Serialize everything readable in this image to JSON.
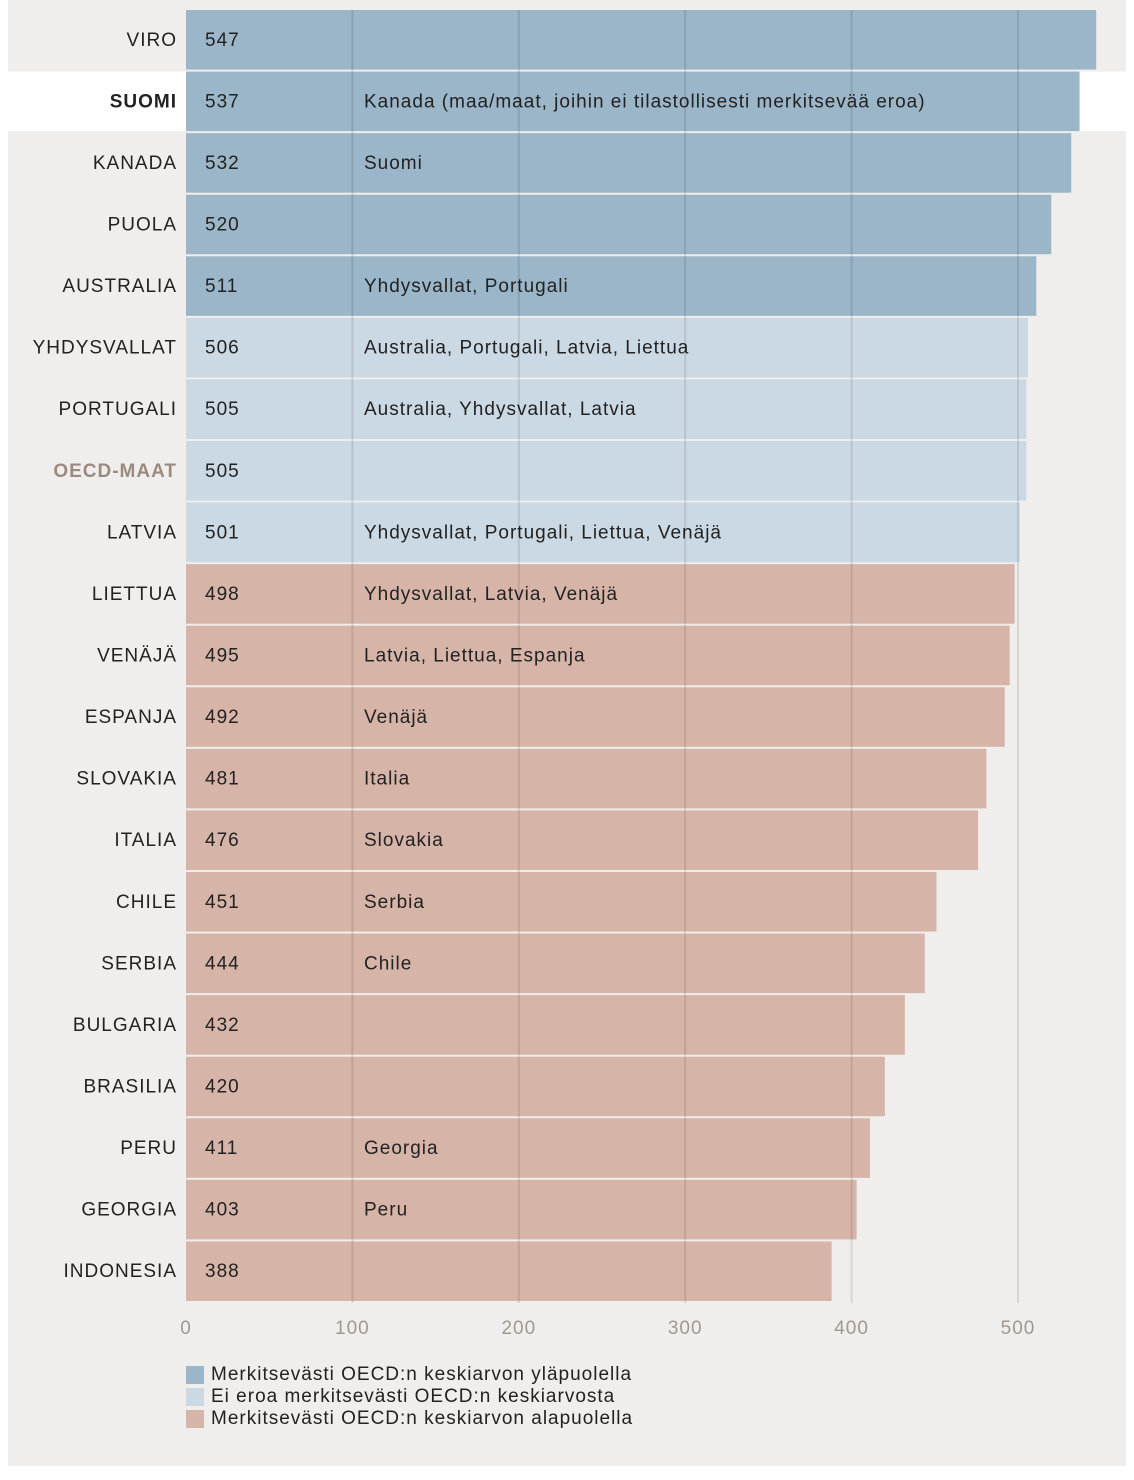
{
  "chart_data": {
    "type": "barh",
    "categories": [
      "VIRO",
      "SUOMI",
      "KANADA",
      "PUOLA",
      "AUSTRALIA",
      "YHDYSVALLAT",
      "PORTUGALI",
      "OECD-MAAT",
      "LATVIA",
      "LIETTUA",
      "VENÄJÄ",
      "ESPANJA",
      "SLOVAKIA",
      "ITALIA",
      "CHILE",
      "SERBIA",
      "BULGARIA",
      "BRASILIA",
      "PERU",
      "GEORGIA",
      "INDONESIA"
    ],
    "series": [
      {
        "name": "Merkitsevästi OECD:n keskiarvon yläpuolella",
        "color": "#9ab6c8",
        "values": [
          547,
          537,
          532,
          520,
          511,
          null,
          null,
          null,
          null,
          null,
          null,
          null,
          null,
          null,
          null,
          null,
          null,
          null,
          null,
          null,
          null
        ]
      },
      {
        "name": "Ei eroa merkitsevästi OECD:n keskiarvosta",
        "color": "#cbd9e4",
        "values": [
          null,
          null,
          null,
          null,
          null,
          506,
          505,
          505,
          501,
          null,
          null,
          null,
          null,
          null,
          null,
          null,
          null,
          null,
          null,
          null,
          null
        ]
      },
      {
        "name": "Merkitsevästi OECD:n keskiarvon alapuolella",
        "color": "#d6b5a8",
        "values": [
          null,
          null,
          null,
          null,
          null,
          null,
          null,
          null,
          null,
          498,
          495,
          492,
          481,
          476,
          451,
          444,
          432,
          420,
          411,
          403,
          388
        ]
      }
    ],
    "annotations": [
      null,
      "Kanada (maa/maat, joihin ei tilastollisesti merkitsevää eroa)",
      "Suomi",
      null,
      "Yhdysvallat, Portugali",
      "Australia, Portugali, Latvia, Liettua",
      "Australia, Yhdysvallat, Latvia",
      null,
      "Yhdysvallat, Portugali, Liettua, Venäjä",
      "Yhdysvallat, Latvia, Venäjä",
      "Latvia, Liettua, Espanja",
      "Venäjä",
      "Italia",
      "Slovakia",
      "Serbia",
      "Chile",
      null,
      null,
      "Georgia",
      "Peru",
      null
    ],
    "highlight_index": 1,
    "reference_index": 7,
    "xlim": [
      0,
      560
    ],
    "xticks": [
      0,
      100,
      200,
      300,
      400,
      500
    ],
    "grid": true
  }
}
